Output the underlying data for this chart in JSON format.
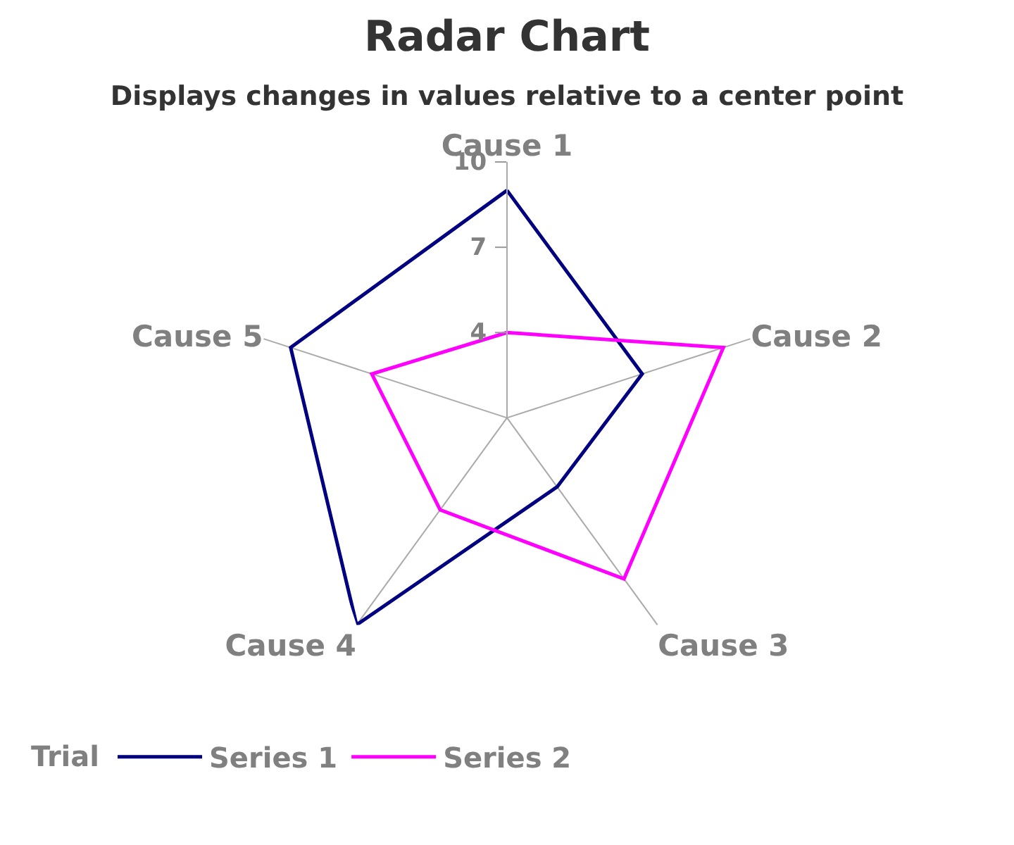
{
  "chart_data": {
    "type": "radar",
    "title": "Radar Chart",
    "subtitle": "Displays changes in values relative to a center point",
    "categories": [
      "Cause 1",
      "Cause 2",
      "Cause 3",
      "Cause 4",
      "Cause 5"
    ],
    "series": [
      {
        "name": "Series 1",
        "color": "#000080",
        "values": [
          9,
          6,
          4,
          10,
          9
        ]
      },
      {
        "name": "Series 2",
        "color": "#ff00ff",
        "values": [
          4,
          9,
          8,
          5,
          6
        ]
      }
    ],
    "ylim": [
      1,
      10
    ],
    "yticks": [
      4,
      7,
      10
    ],
    "legend_title": "Trial",
    "legend": "bottom left",
    "grid": false,
    "marker": "none",
    "line_style": "solid"
  }
}
